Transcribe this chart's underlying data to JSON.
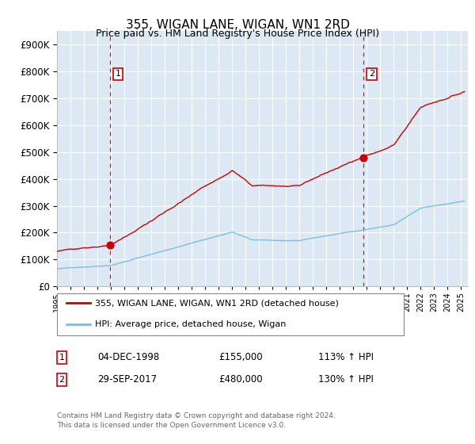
{
  "title": "355, WIGAN LANE, WIGAN, WN1 2RD",
  "subtitle": "Price paid vs. HM Land Registry's House Price Index (HPI)",
  "legend_line1": "355, WIGAN LANE, WIGAN, WN1 2RD (detached house)",
  "legend_line2": "HPI: Average price, detached house, Wigan",
  "point1_date": "04-DEC-1998",
  "point1_price": 155000,
  "point1_label": "113% ↑ HPI",
  "point1_x": 1998.92,
  "point2_date": "29-SEP-2017",
  "point2_price": 480000,
  "point2_label": "130% ↑ HPI",
  "point2_x": 2017.75,
  "xmin": 1995.0,
  "xmax": 2025.5,
  "ymin": 0,
  "ymax": 950000,
  "background_color": "#dce9f5",
  "fig_bg_color": "#ffffff",
  "grid_color": "#ffffff",
  "hpi_line_color": "#7bbfdf",
  "price_line_color": "#cc0000",
  "dashed_line_color": "#cc0000",
  "footnote": "Contains HM Land Registry data © Crown copyright and database right 2024.\nThis data is licensed under the Open Government Licence v3.0.",
  "footnote_color": "#666666"
}
